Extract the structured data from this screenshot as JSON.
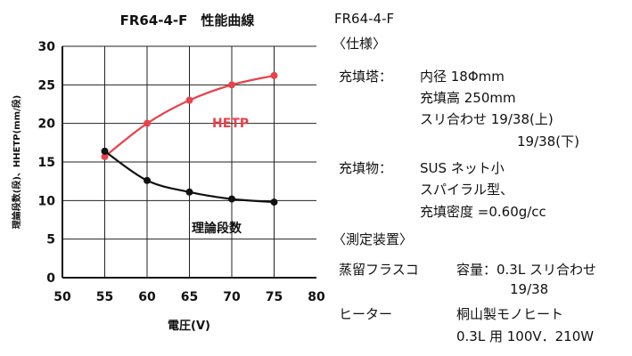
{
  "chart_data": {
    "type": "line",
    "title": "FR64-4-F　性能曲線",
    "xlabel": "電圧(V)",
    "ylabel": "理論段数(段)、HHETP(mm/段)",
    "x": [
      55,
      60,
      65,
      70,
      75
    ],
    "xlim": [
      50,
      80
    ],
    "ylim": [
      0,
      30
    ],
    "xticks": [
      50,
      55,
      60,
      65,
      70,
      75,
      80
    ],
    "yticks": [
      0,
      5,
      10,
      15,
      20,
      25,
      30
    ],
    "grid": true,
    "series": [
      {
        "name": "HETP",
        "color": "#e8424a",
        "values": [
          15.7,
          20.0,
          23.0,
          25.0,
          26.2
        ]
      },
      {
        "name": "理論段数",
        "color": "#111111",
        "values": [
          16.4,
          12.6,
          11.1,
          10.2,
          9.8
        ]
      }
    ]
  },
  "spec": {
    "model": "FR64-4-F",
    "spec_header": "〈仕様〉",
    "column_label": "充填塔：",
    "column_inner_diameter": "内径 18Φmm",
    "column_height": "充填高 250mm",
    "column_joint_top": "スリ合わせ 19/38(上)",
    "column_joint_bottom": "19/38(下)",
    "packing_label": "充填物：",
    "packing_material": "SUS ネット小",
    "packing_shape": "スパイラル型、",
    "packing_density": "充填密度 =0.60g/cc",
    "measure_header": "〈測定装置〉",
    "flask_label": "蒸留フラスコ",
    "flask_capacity": "容量：0.3L スリ合わせ",
    "flask_joint": "19/38",
    "heater_label": "ヒーター",
    "heater_maker": "桐山製モノヒート",
    "heater_spec": "0.3L 用 100V．210W"
  }
}
